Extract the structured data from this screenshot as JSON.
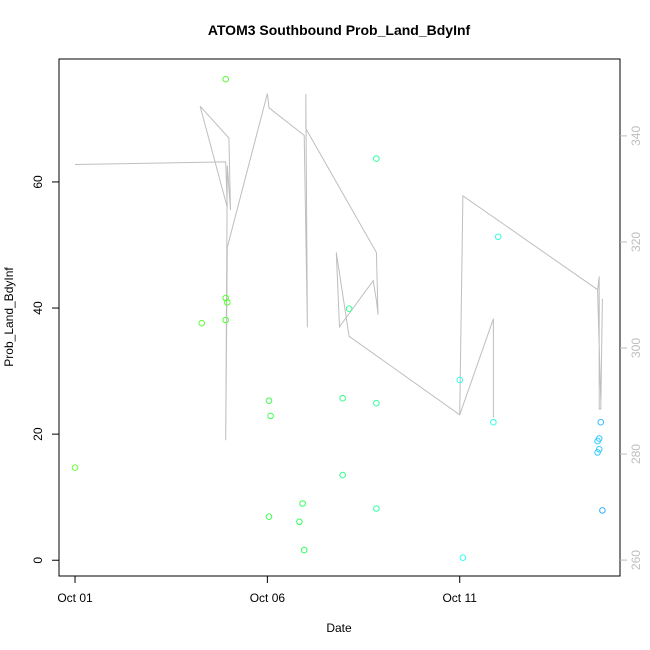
{
  "chart_data": {
    "type": "scatter",
    "title": "ATOM3 Southbound Prob_Land_BdyInf",
    "xlabel": "Date",
    "ylabel": "Prob_Land_BdyInf",
    "x_ticks": [
      "Oct 01",
      "Oct 06",
      "Oct 11"
    ],
    "y_ticks": [
      0,
      20,
      40,
      60
    ],
    "y2_ticks": [
      260,
      280,
      300,
      320,
      340
    ],
    "xlim": [
      "2024-09-30T14:00",
      "2024-10-15T04:00"
    ],
    "ylim": [
      -2.5,
      79.5
    ],
    "y2lim": [
      257.0,
      354.5
    ],
    "colors": {
      "axis": "#000000",
      "line": "#bebebe",
      "y2_axis": "#bebebe"
    },
    "points": [
      {
        "date": "2024-10-01T00:00",
        "value": 14.7,
        "color": "#66ff33"
      },
      {
        "date": "2024-10-04T07:00",
        "value": 37.6,
        "color": "#5cff33"
      },
      {
        "date": "2024-10-04T22:00",
        "value": 76.3,
        "color": "#52ff33"
      },
      {
        "date": "2024-10-04T22:00",
        "value": 41.6,
        "color": "#52ff33"
      },
      {
        "date": "2024-10-04T23:00",
        "value": 40.9,
        "color": "#52ff33"
      },
      {
        "date": "2024-10-04T22:00",
        "value": 38.1,
        "color": "#52ff33"
      },
      {
        "date": "2024-10-06T01:00",
        "value": 25.3,
        "color": "#3dff4d"
      },
      {
        "date": "2024-10-06T02:00",
        "value": 22.9,
        "color": "#3dff4d"
      },
      {
        "date": "2024-10-06T01:00",
        "value": 6.9,
        "color": "#3dff4d"
      },
      {
        "date": "2024-10-06T20:00",
        "value": 6.1,
        "color": "#33ff5c"
      },
      {
        "date": "2024-10-06T22:00",
        "value": 9.0,
        "color": "#33ff5c"
      },
      {
        "date": "2024-10-06T23:00",
        "value": 1.6,
        "color": "#33ff5c"
      },
      {
        "date": "2024-10-07T23:00",
        "value": 25.7,
        "color": "#33ff8c"
      },
      {
        "date": "2024-10-07T23:00",
        "value": 13.5,
        "color": "#33ff8c"
      },
      {
        "date": "2024-10-08T03:00",
        "value": 39.9,
        "color": "#33ff8c"
      },
      {
        "date": "2024-10-08T20:00",
        "value": 63.7,
        "color": "#33ffa3"
      },
      {
        "date": "2024-10-08T20:00",
        "value": 24.9,
        "color": "#33ffa3"
      },
      {
        "date": "2024-10-08T20:00",
        "value": 8.2,
        "color": "#33ffa3"
      },
      {
        "date": "2024-10-11T00:00",
        "value": 28.6,
        "color": "#33ffee"
      },
      {
        "date": "2024-10-11T02:00",
        "value": 0.4,
        "color": "#33ffee"
      },
      {
        "date": "2024-10-11T21:00",
        "value": 21.9,
        "color": "#33ffe0"
      },
      {
        "date": "2024-10-12T00:00",
        "value": 51.3,
        "color": "#33ffe0"
      },
      {
        "date": "2024-10-14T14:00",
        "value": 18.9,
        "color": "#33ccff"
      },
      {
        "date": "2024-10-14T15:00",
        "value": 19.3,
        "color": "#33ccff"
      },
      {
        "date": "2024-10-14T15:00",
        "value": 17.6,
        "color": "#33ccff"
      },
      {
        "date": "2024-10-14T14:00",
        "value": 17.1,
        "color": "#33ccff"
      },
      {
        "date": "2024-10-14T16:00",
        "value": 21.9,
        "color": "#33bbff"
      },
      {
        "date": "2024-10-14T17:00",
        "value": 7.9,
        "color": "#33aaff"
      }
    ],
    "line_secondary": [
      {
        "date": "2024-10-01T00:00",
        "value": 334.6
      },
      {
        "date": "2024-10-04T22:00",
        "value": 335.1
      },
      {
        "date": "2024-10-04T23:00",
        "value": 326.5
      },
      {
        "date": "2024-10-04T06:00",
        "value": 345.6
      },
      {
        "date": "2024-10-05T00:00",
        "value": 339.6
      },
      {
        "date": "2024-10-05T01:00",
        "value": 326.0
      },
      {
        "date": "2024-10-04T23:00",
        "value": 334.4
      },
      {
        "date": "2024-10-04T22:00",
        "value": 282.6
      },
      {
        "date": "2024-10-04T23:00",
        "value": 319.0
      },
      {
        "date": "2024-10-06T00:00",
        "value": 348.0
      },
      {
        "date": "2024-10-06T01:00",
        "value": 345.3
      },
      {
        "date": "2024-10-06T23:00",
        "value": 340.1
      },
      {
        "date": "2024-10-07T01:00",
        "value": 303.9
      },
      {
        "date": "2024-10-07T00:00",
        "value": 347.9
      },
      {
        "date": "2024-10-07T00:00",
        "value": 341.4
      },
      {
        "date": "2024-10-08T20:00",
        "value": 318.0
      },
      {
        "date": "2024-10-08T21:00",
        "value": 306.3
      },
      {
        "date": "2024-10-08T20:00",
        "value": 309.0
      },
      {
        "date": "2024-10-08T18:00",
        "value": 312.7
      },
      {
        "date": "2024-10-07T21:00",
        "value": 304.0
      },
      {
        "date": "2024-10-07T19:00",
        "value": 318.0
      },
      {
        "date": "2024-10-08T03:00",
        "value": 302.2
      },
      {
        "date": "2024-10-11T00:00",
        "value": 287.4
      },
      {
        "date": "2024-10-11T02:00",
        "value": 328.7
      },
      {
        "date": "2024-10-14T14:00",
        "value": 311.0
      },
      {
        "date": "2024-10-14T16:00",
        "value": 290.0
      },
      {
        "date": "2024-10-14T14:00",
        "value": 310.8
      },
      {
        "date": "2024-10-14T15:00",
        "value": 313.5
      },
      {
        "date": "2024-10-14T15:00",
        "value": 288.5
      },
      {
        "date": "2024-10-14T16:00",
        "value": 288.5
      },
      {
        "date": "2024-10-14T17:00",
        "value": 309.3
      }
    ],
    "line_secondary_tail": [
      {
        "date": "2024-10-11T00:00",
        "value": 287.4
      },
      {
        "date": "2024-10-11T21:00",
        "value": 305.5
      },
      {
        "date": "2024-10-11T21:00",
        "value": 286.9
      }
    ],
    "grid": false,
    "legend": "none"
  }
}
